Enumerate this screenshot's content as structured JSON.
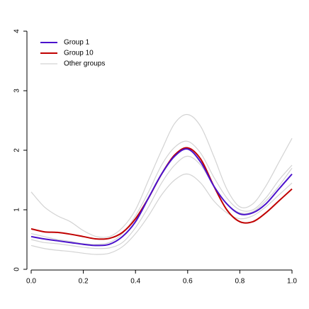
{
  "chart_data": {
    "type": "line",
    "x": [
      0,
      0.05,
      0.1,
      0.15,
      0.2,
      0.25,
      0.3,
      0.35,
      0.4,
      0.45,
      0.5,
      0.55,
      0.6,
      0.65,
      0.7,
      0.75,
      0.8,
      0.85,
      0.9,
      0.95,
      1.0
    ],
    "series": [
      {
        "name": "Group 1",
        "color": "#4b12cc",
        "values": [
          0.55,
          0.51,
          0.48,
          0.45,
          0.42,
          0.4,
          0.42,
          0.55,
          0.8,
          1.2,
          1.6,
          1.9,
          2.02,
          1.8,
          1.4,
          1.1,
          0.93,
          0.95,
          1.1,
          1.35,
          1.6
        ]
      },
      {
        "name": "Group 10",
        "color": "#c00000",
        "values": [
          0.68,
          0.63,
          0.62,
          0.59,
          0.55,
          0.51,
          0.52,
          0.62,
          0.85,
          1.2,
          1.6,
          1.92,
          2.04,
          1.85,
          1.4,
          1.0,
          0.8,
          0.8,
          0.95,
          1.15,
          1.35
        ]
      },
      {
        "name": "Other groups",
        "color": "#d3d3d3",
        "values": [
          1.3,
          1.05,
          0.9,
          0.8,
          0.65,
          0.55,
          0.55,
          0.7,
          1.0,
          1.5,
          2.0,
          2.45,
          2.6,
          2.4,
          1.9,
          1.35,
          1.05,
          1.1,
          1.4,
          1.8,
          2.2
        ]
      },
      {
        "name": "Other groups",
        "color": "#d3d3d3",
        "values": [
          0.6,
          0.55,
          0.5,
          0.47,
          0.43,
          0.42,
          0.45,
          0.6,
          0.9,
          1.3,
          1.75,
          2.05,
          2.15,
          1.95,
          1.55,
          1.2,
          1.0,
          1.0,
          1.2,
          1.5,
          1.75
        ]
      },
      {
        "name": "Other groups",
        "color": "#d3d3d3",
        "values": [
          0.4,
          0.35,
          0.32,
          0.3,
          0.27,
          0.25,
          0.27,
          0.38,
          0.6,
          0.9,
          1.25,
          1.5,
          1.6,
          1.45,
          1.15,
          0.95,
          0.85,
          0.9,
          1.05,
          1.25,
          1.45
        ]
      },
      {
        "name": "Other groups",
        "color": "#d3d3d3",
        "values": [
          0.5,
          0.45,
          0.43,
          0.4,
          0.37,
          0.35,
          0.36,
          0.45,
          0.7,
          1.05,
          1.45,
          1.75,
          1.9,
          1.75,
          1.4,
          1.1,
          0.95,
          0.97,
          1.15,
          1.4,
          1.7
        ]
      }
    ],
    "xlim": [
      0,
      1
    ],
    "ylim": [
      0,
      4
    ],
    "xticks": [
      {
        "value": 0,
        "label": "0.0"
      },
      0.2,
      0.4,
      0.6,
      0.8,
      {
        "value": 1,
        "label": "1.0"
      }
    ],
    "yticks": [
      0,
      1,
      2,
      3,
      4
    ],
    "legend": "top-left",
    "grid": false
  }
}
